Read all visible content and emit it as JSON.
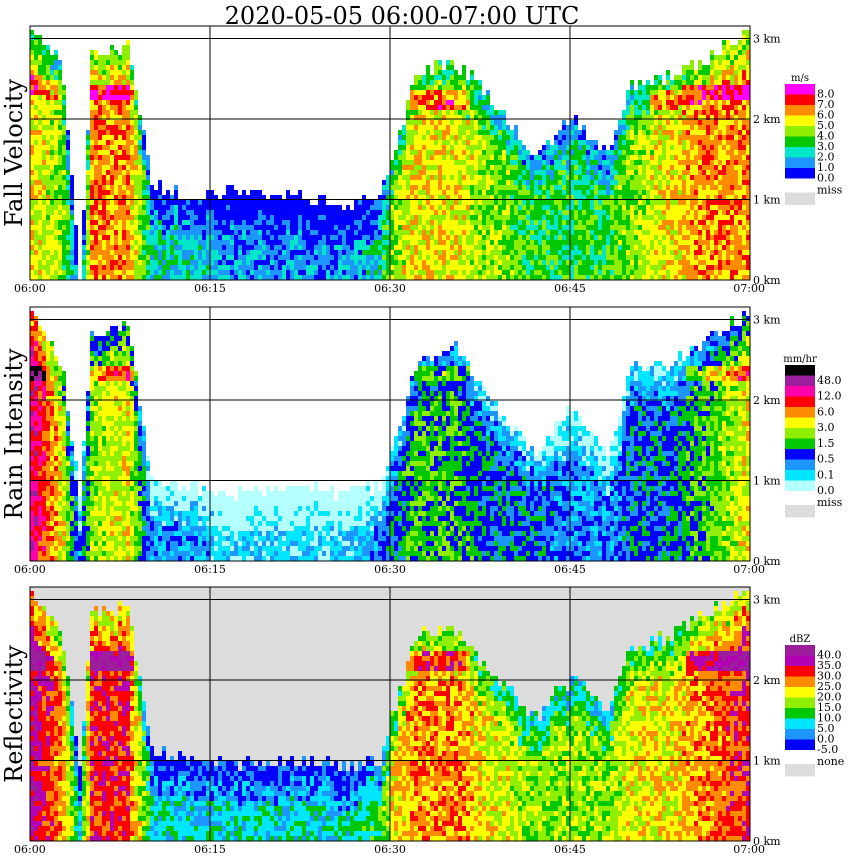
{
  "title": "2020-05-05   06:00-07:00 UTC",
  "chart_data": [
    {
      "type": "heatmap",
      "panel": "fall_velocity",
      "ylabel": "Fall Velocity",
      "xlabel": "",
      "x_ticks": [
        "06:00",
        "06:15",
        "06:30",
        "06:45",
        "07:00"
      ],
      "y_ticks": [
        "0 km",
        "1 km",
        "2 km",
        "3 km"
      ],
      "ylim": [
        0,
        3.2
      ],
      "grid": true,
      "legend": {
        "unit": "m/s",
        "labels": [
          "8.0",
          "7.0",
          "6.0",
          "5.0",
          "4.0",
          "3.0",
          "2.0",
          "1.0",
          "0.0"
        ],
        "colors": [
          "#ff00ff",
          "#ff0000",
          "#ff8c00",
          "#ffff00",
          "#90ee00",
          "#00c800",
          "#00e6c8",
          "#1e96ff",
          "#0000ff"
        ],
        "missing_label": "miss",
        "missing_color": "#dcdcdc"
      },
      "palette": [
        "#0000ff",
        "#1e96ff",
        "#00e6c8",
        "#00c800",
        "#90ee00",
        "#ffff00",
        "#ff8c00",
        "#ff0000",
        "#ff00ff"
      ],
      "background": "#ffffff",
      "columns": [
        {
          "t": 0.0,
          "top": 3.1,
          "v": 5,
          "bright_band": 2.4
        },
        {
          "t": 2.5,
          "top": 2.7,
          "v": 4,
          "bright_band": 2.3
        },
        {
          "t": 4.0,
          "top": 0.0,
          "v": 0
        },
        {
          "t": 5.0,
          "top": 2.8,
          "v": 6,
          "bright_band": 2.3
        },
        {
          "t": 8.0,
          "top": 2.9,
          "v": 6,
          "bright_band": 2.3
        },
        {
          "t": 10.0,
          "top": 1.2,
          "v": 2
        },
        {
          "t": 13.0,
          "top": 1.0,
          "v": 2
        },
        {
          "t": 17.0,
          "top": 1.1,
          "v": 1
        },
        {
          "t": 22.0,
          "top": 1.0,
          "v": 1
        },
        {
          "t": 26.0,
          "top": 0.9,
          "v": 1
        },
        {
          "t": 29.0,
          "top": 1.0,
          "v": 2
        },
        {
          "t": 30.0,
          "top": 1.4,
          "v": 4
        },
        {
          "t": 32.0,
          "top": 2.5,
          "v": 5,
          "bright_band": 2.2
        },
        {
          "t": 35.0,
          "top": 2.7,
          "v": 5,
          "bright_band": 2.2
        },
        {
          "t": 38.0,
          "top": 2.3,
          "v": 4
        },
        {
          "t": 42.0,
          "top": 1.5,
          "v": 3
        },
        {
          "t": 45.0,
          "top": 2.0,
          "v": 3
        },
        {
          "t": 48.0,
          "top": 1.5,
          "v": 3
        },
        {
          "t": 50.0,
          "top": 2.4,
          "v": 4
        },
        {
          "t": 53.0,
          "top": 2.5,
          "v": 5,
          "bright_band": 2.2
        },
        {
          "t": 56.0,
          "top": 2.7,
          "v": 6,
          "bright_band": 2.3
        },
        {
          "t": 60.0,
          "top": 3.1,
          "v": 6,
          "bright_band": 2.3
        }
      ]
    },
    {
      "type": "heatmap",
      "panel": "rain_intensity",
      "ylabel": "Rain Intensity",
      "xlabel": "",
      "x_ticks": [
        "06:00",
        "06:15",
        "06:30",
        "06:45",
        "07:00"
      ],
      "y_ticks": [
        "0 km",
        "1 km",
        "2 km",
        "3 km"
      ],
      "ylim": [
        0,
        3.2
      ],
      "grid": true,
      "legend": {
        "unit": "mm/hr",
        "labels": [
          "48.0",
          "12.0",
          "6.0",
          "3.0",
          "1.5",
          "0.5",
          "0.1",
          "0.0"
        ],
        "colors": [
          "#000000",
          "#9c1e9c",
          "#ff00aa",
          "#ff0000",
          "#ff8c00",
          "#ffff00",
          "#90ee00",
          "#00c800",
          "#0000ff",
          "#1e96ff",
          "#00e6ff",
          "#b4ffff"
        ],
        "missing_label": "miss",
        "missing_color": "#dcdcdc"
      },
      "palette": [
        "#b4ffff",
        "#00e6ff",
        "#1e96ff",
        "#0000ff",
        "#00c800",
        "#90ee00",
        "#ffff00",
        "#ff8c00",
        "#ff0000",
        "#ff00aa",
        "#9c1e9c",
        "#000000"
      ],
      "background": "#ffffff",
      "columns": [
        {
          "t": 0.0,
          "top": 3.1,
          "v": 9,
          "bright_band": 2.3
        },
        {
          "t": 2.5,
          "top": 2.4,
          "v": 6
        },
        {
          "t": 4.0,
          "top": 0.8,
          "v": 2
        },
        {
          "t": 5.0,
          "top": 2.8,
          "v": 5,
          "bright_band": 2.3
        },
        {
          "t": 8.0,
          "top": 2.9,
          "v": 6,
          "bright_band": 2.3
        },
        {
          "t": 10.0,
          "top": 1.0,
          "v": 2
        },
        {
          "t": 13.0,
          "top": 0.9,
          "v": 2
        },
        {
          "t": 17.0,
          "top": 0.8,
          "v": 1
        },
        {
          "t": 22.0,
          "top": 0.9,
          "v": 1
        },
        {
          "t": 26.0,
          "top": 0.8,
          "v": 1
        },
        {
          "t": 29.0,
          "top": 0.9,
          "v": 2
        },
        {
          "t": 30.0,
          "top": 1.3,
          "v": 3
        },
        {
          "t": 32.0,
          "top": 2.4,
          "v": 4,
          "bright_band": 2.3
        },
        {
          "t": 35.0,
          "top": 2.7,
          "v": 4,
          "bright_band": 2.3
        },
        {
          "t": 38.0,
          "top": 2.0,
          "v": 3
        },
        {
          "t": 42.0,
          "top": 1.3,
          "v": 3
        },
        {
          "t": 45.0,
          "top": 1.9,
          "v": 2
        },
        {
          "t": 48.0,
          "top": 1.3,
          "v": 2
        },
        {
          "t": 50.0,
          "top": 2.4,
          "v": 3
        },
        {
          "t": 53.0,
          "top": 2.4,
          "v": 3
        },
        {
          "t": 56.0,
          "top": 2.7,
          "v": 4,
          "bright_band": 2.3
        },
        {
          "t": 60.0,
          "top": 3.1,
          "v": 6,
          "bright_band": 2.3
        }
      ]
    },
    {
      "type": "heatmap",
      "panel": "reflectivity",
      "ylabel": "Reflectivity",
      "xlabel": "",
      "x_ticks": [
        "06:00",
        "06:15",
        "06:30",
        "06:45",
        "07:00"
      ],
      "y_ticks": [
        "0 km",
        "1 km",
        "2 km",
        "3 km"
      ],
      "ylim": [
        0,
        3.2
      ],
      "grid": true,
      "legend": {
        "unit": "dBZ",
        "labels": [
          "40.0",
          "35.0",
          "30.0",
          "25.0",
          "20.0",
          "15.0",
          "10.0",
          "5.0",
          "0.0",
          "-5.0"
        ],
        "colors": [
          "#9c1e9c",
          "#b400b4",
          "#ff0000",
          "#ff8c00",
          "#ffff00",
          "#90ee00",
          "#00c800",
          "#00e6ff",
          "#1e96ff",
          "#0000ff"
        ],
        "missing_label": "none",
        "missing_color": "#dcdcdc"
      },
      "palette": [
        "#0000ff",
        "#1e96ff",
        "#00e6ff",
        "#00c800",
        "#90ee00",
        "#ffff00",
        "#ff8c00",
        "#ff0000",
        "#b400b4",
        "#9c1e9c"
      ],
      "background": "#dcdcdc",
      "columns": [
        {
          "t": 0.0,
          "top": 3.1,
          "v": 8,
          "bright_band": 2.2
        },
        {
          "t": 2.5,
          "top": 2.6,
          "v": 6
        },
        {
          "t": 4.0,
          "top": 0.9,
          "v": 2
        },
        {
          "t": 5.0,
          "top": 2.8,
          "v": 7,
          "bright_band": 2.2
        },
        {
          "t": 8.0,
          "top": 2.9,
          "v": 7,
          "bright_band": 2.2
        },
        {
          "t": 10.0,
          "top": 1.1,
          "v": 2
        },
        {
          "t": 13.0,
          "top": 1.0,
          "v": 2
        },
        {
          "t": 17.0,
          "top": 0.9,
          "v": 2
        },
        {
          "t": 22.0,
          "top": 1.0,
          "v": 2
        },
        {
          "t": 26.0,
          "top": 0.9,
          "v": 2
        },
        {
          "t": 29.0,
          "top": 1.0,
          "v": 3
        },
        {
          "t": 30.0,
          "top": 1.5,
          "v": 5
        },
        {
          "t": 32.0,
          "top": 2.5,
          "v": 6,
          "bright_band": 2.2
        },
        {
          "t": 35.0,
          "top": 2.7,
          "v": 6,
          "bright_band": 2.2
        },
        {
          "t": 38.0,
          "top": 2.1,
          "v": 5
        },
        {
          "t": 42.0,
          "top": 1.5,
          "v": 4
        },
        {
          "t": 45.0,
          "top": 2.0,
          "v": 4
        },
        {
          "t": 48.0,
          "top": 1.6,
          "v": 4
        },
        {
          "t": 50.0,
          "top": 2.4,
          "v": 5
        },
        {
          "t": 53.0,
          "top": 2.5,
          "v": 5
        },
        {
          "t": 56.0,
          "top": 2.8,
          "v": 6,
          "bright_band": 2.2
        },
        {
          "t": 60.0,
          "top": 3.1,
          "v": 7,
          "bright_band": 2.2
        }
      ]
    }
  ]
}
